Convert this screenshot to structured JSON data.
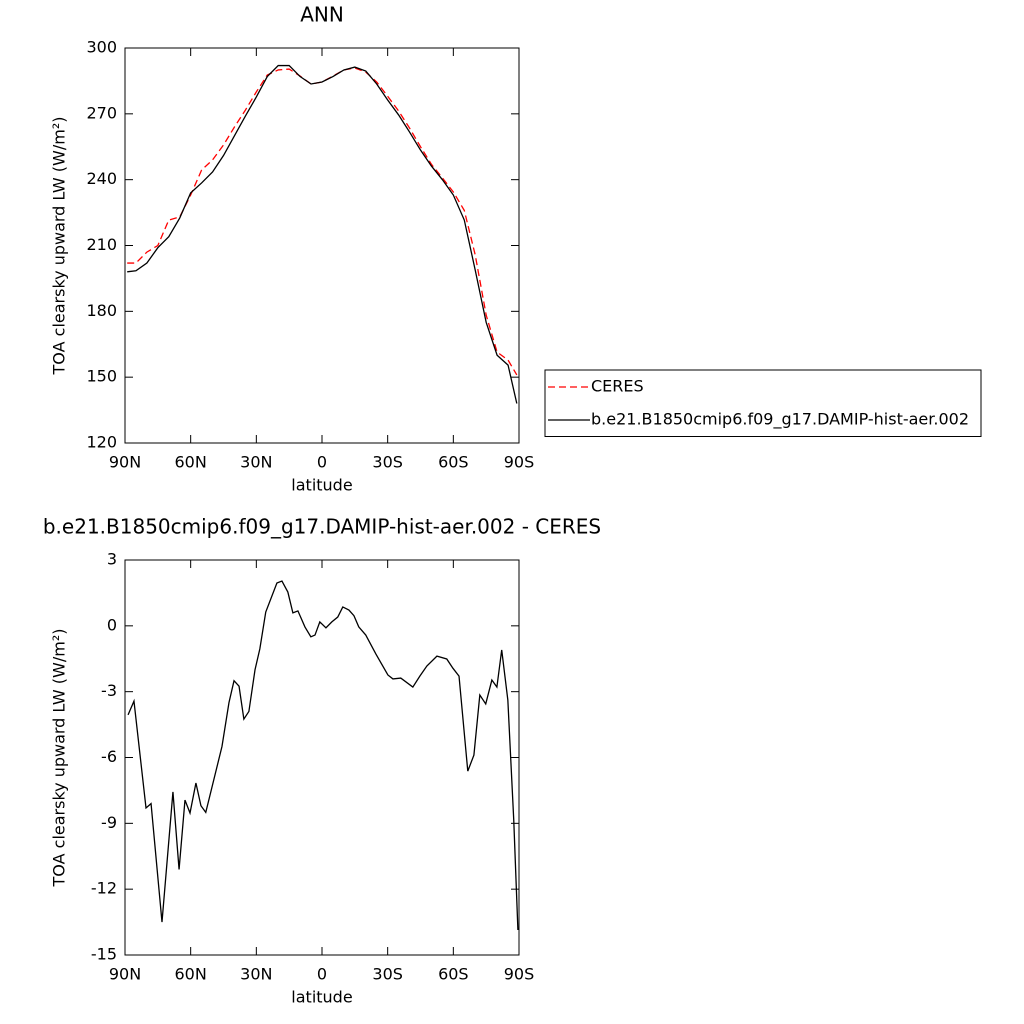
{
  "chart_data": [
    {
      "type": "line",
      "title": "ANN",
      "xlabel": "latitude",
      "ylabel": "TOA clearsky upward LW (W/m²)",
      "x": [
        89,
        85,
        80,
        75,
        70,
        65,
        60,
        55,
        50,
        45,
        40,
        35,
        30,
        25,
        20,
        15,
        10,
        5,
        0,
        -5,
        -10,
        -15,
        -20,
        -25,
        -30,
        -35,
        -40,
        -45,
        -50,
        -55,
        -60,
        -65,
        -70,
        -75,
        -80,
        -85,
        -89
      ],
      "series": [
        {
          "name": "CERES",
          "color": "#ff0000",
          "line_style": "dashed",
          "values": [
            202,
            202,
            207,
            210,
            221.6,
            223,
            233,
            244.4,
            249,
            255.8,
            264,
            271.7,
            280,
            287.7,
            290,
            290.4,
            287.2,
            283.6,
            284.5,
            287.2,
            290,
            290.9,
            289,
            284.5,
            278,
            271.3,
            263.5,
            255,
            247,
            240.8,
            234.4,
            226,
            205.7,
            178.3,
            161.4,
            157.8,
            151
          ]
        },
        {
          "name": "b.e21.B1850cmip6.f09_g17.DAMIP-hist-aer.002",
          "color": "#000000",
          "line_style": "solid",
          "values": [
            198,
            198.5,
            202,
            209,
            214,
            222.5,
            234,
            238.5,
            243.5,
            251,
            260,
            269,
            277.7,
            287,
            292,
            292,
            287,
            283.6,
            284.5,
            287,
            290,
            291.3,
            289.5,
            283.6,
            276.3,
            269.5,
            261.7,
            253.5,
            246.2,
            240,
            233,
            221.6,
            198.8,
            175,
            160,
            155.5,
            138
          ]
        }
      ],
      "xlim": [
        90,
        -90
      ],
      "xticks": [
        {
          "value": 90,
          "label": "90N"
        },
        {
          "value": 60,
          "label": "60N"
        },
        {
          "value": 30,
          "label": "30N"
        },
        0,
        {
          "value": -30,
          "label": "30S"
        },
        {
          "value": -60,
          "label": "60S"
        },
        {
          "value": -90,
          "label": "90S"
        }
      ],
      "ylim": [
        120,
        300
      ],
      "yticks": [
        120,
        150,
        180,
        210,
        240,
        270,
        300
      ],
      "legend": "right"
    },
    {
      "type": "line",
      "title": "b.e21.B1850cmip6.f09_g17.DAMIP-hist-aer.002 - CERES",
      "xlabel": "latitude",
      "ylabel": "TOA clearsky upward LW (W/m²)",
      "x": [
        88.6,
        85.9,
        80.4,
        78.1,
        73.1,
        68.1,
        65.3,
        62.6,
        60.3,
        57.6,
        55.3,
        53.1,
        45.7,
        42.5,
        40.2,
        37.9,
        35.7,
        33.4,
        30.6,
        28.4,
        25.7,
        20.6,
        18.3,
        15.6,
        13.3,
        11.0,
        7.8,
        5.1,
        3.2,
        1.0,
        -1.8,
        -4.5,
        -7.2,
        -9.5,
        -12.3,
        -14.6,
        -16.8,
        -20.0,
        -24.6,
        -30.1,
        -32.4,
        -36.0,
        -41.5,
        -44.7,
        -47.9,
        -52.5,
        -57.0,
        -59.8,
        -62.6,
        -66.6,
        -69.4,
        -72.1,
        -74.8,
        -77.6,
        -79.9,
        -82.1,
        -84.9,
        -87.6,
        -89.5
      ],
      "values": [
        -4.06,
        -3.43,
        -8.3,
        -8.1,
        -13.5,
        -7.57,
        -11.1,
        -7.94,
        -8.53,
        -7.16,
        -8.2,
        -8.5,
        -5.5,
        -3.5,
        -2.5,
        -2.75,
        -4.25,
        -3.9,
        -2.0,
        -1.05,
        0.63,
        1.95,
        2.04,
        1.54,
        0.59,
        0.68,
        -0.05,
        -0.5,
        -0.42,
        0.18,
        -0.09,
        0.18,
        0.4,
        0.86,
        0.72,
        0.46,
        -0.05,
        -0.42,
        -1.28,
        -2.24,
        -2.42,
        -2.38,
        -2.79,
        -2.29,
        -1.83,
        -1.38,
        -1.51,
        -1.93,
        -2.29,
        -6.62,
        -5.89,
        -3.15,
        -3.56,
        -2.47,
        -2.79,
        -1.1,
        -3.38,
        -8.85,
        -13.86
      ],
      "color": "#000000",
      "xlim": [
        90,
        -90
      ],
      "xticks": [
        {
          "value": 90,
          "label": "90N"
        },
        {
          "value": 60,
          "label": "60N"
        },
        {
          "value": 30,
          "label": "30N"
        },
        0,
        {
          "value": -30,
          "label": "30S"
        },
        {
          "value": -60,
          "label": "60S"
        },
        {
          "value": -90,
          "label": "90S"
        }
      ],
      "ylim": [
        -15,
        3
      ],
      "yticks": [
        -15,
        -12,
        -9,
        -6,
        -3,
        0,
        3
      ]
    }
  ]
}
